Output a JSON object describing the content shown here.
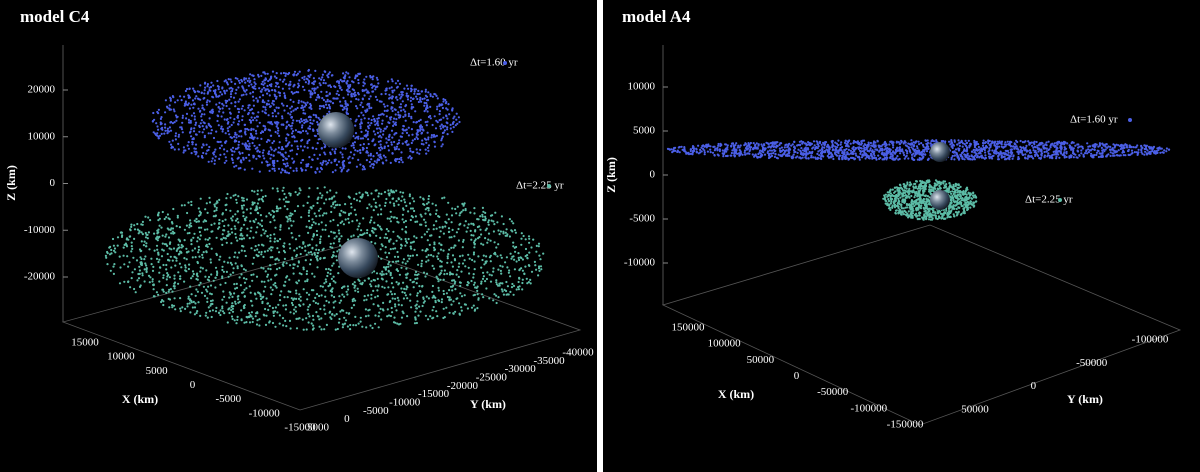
{
  "panels": [
    {
      "title": "model C4",
      "legend": [
        "Δt=1.60 yr",
        "Δt=2.25 yr"
      ],
      "z_label": "Z (km)",
      "x_label": "X (km)",
      "y_label": "Y (km)",
      "z_ticks": [
        20000,
        10000,
        0,
        -10000,
        -20000
      ],
      "x_ticks": [
        15000,
        10000,
        5000,
        0,
        -5000,
        -10000,
        -15000
      ],
      "y_ticks": [
        5000,
        0,
        -5000,
        -10000,
        -15000,
        -20000,
        -25000,
        -30000,
        -35000,
        -40000
      ]
    },
    {
      "title": "model A4",
      "legend": [
        "Δt=1.60 yr",
        "Δt=2.25 yr"
      ],
      "z_label": "Z (km)",
      "x_label": "X (km)",
      "y_label": "Y (km)",
      "z_ticks": [
        10000,
        5000,
        0,
        -5000,
        -10000
      ],
      "x_ticks": [
        150000,
        100000,
        50000,
        0,
        -50000,
        -100000,
        -150000
      ],
      "y_ticks": [
        50000,
        0,
        -50000,
        -100000
      ]
    }
  ]
}
